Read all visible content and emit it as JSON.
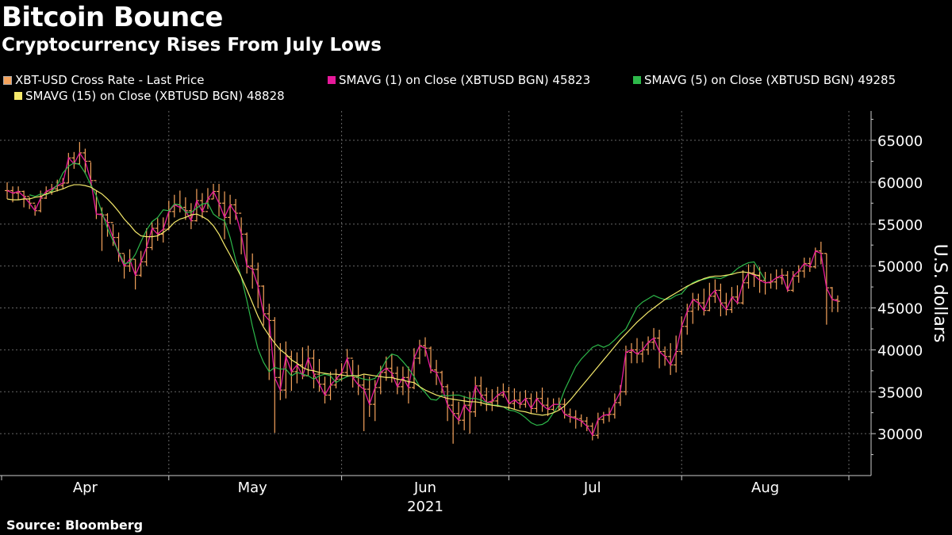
{
  "chart_data": {
    "type": "line",
    "title": "Bitcoin Bounce",
    "subtitle": "Cryptocurrency Rises From July Lows",
    "source": "Source: Bloomberg",
    "ylabel": "U.S. dollars",
    "year_label": "2021",
    "ylim": [
      25000,
      68500
    ],
    "yticks": [
      30000,
      35000,
      40000,
      45000,
      50000,
      55000,
      60000,
      65000
    ],
    "ytick_labels": [
      "30000",
      "35000",
      "40000",
      "45000",
      "50000",
      "55000",
      "60000",
      "65000"
    ],
    "xlim": [
      0,
      152
    ],
    "month_labels": [
      {
        "label": "Apr",
        "x": 15
      },
      {
        "label": "May",
        "x": 45
      },
      {
        "label": "Jun",
        "x": 76
      },
      {
        "label": "Jul",
        "x": 106
      },
      {
        "label": "Aug",
        "x": 137
      }
    ],
    "legend": [
      {
        "label": "XBT-USD Cross Rate - Last Price",
        "color": "#f5a35c"
      },
      {
        "label": "SMAVG (1)  on Close (XBTUSD BGN) 45823",
        "color": "#e6199a"
      },
      {
        "label": "SMAVG (5)  on Close (XBTUSD BGN) 49285",
        "color": "#2db84a"
      },
      {
        "label": "SMAVG (15)  on Close (XBTUSD BGN) 48828",
        "color": "#f5e96b"
      }
    ],
    "series": [
      {
        "name": "XBT-USD Cross Rate - Last Price",
        "type": "ohlc",
        "color": "#f5a35c",
        "start_x": 1,
        "close": [
          59000,
          58700,
          58900,
          58300,
          57500,
          56600,
          58100,
          58900,
          59200,
          59600,
          59900,
          62900,
          62200,
          63500,
          62500,
          60200,
          56200,
          56100,
          55200,
          53400,
          51500,
          50000,
          50800,
          48900,
          50500,
          52200,
          54500,
          53800,
          54400,
          56500,
          57300,
          57000,
          56600,
          55400,
          57800,
          56500,
          58000,
          58900,
          57500,
          55800,
          57300,
          56300,
          53800,
          50000,
          49600,
          47600,
          44300,
          43500,
          36700,
          35200,
          39200,
          37400,
          38200,
          36900,
          39000,
          37100,
          35900,
          34600,
          35800,
          36500,
          37300,
          39000,
          36700,
          35800,
          35300,
          33500,
          35500,
          37300,
          37800,
          37200,
          35600,
          36700,
          35500,
          39000,
          40500,
          40200,
          37600,
          37300,
          35600,
          33400,
          32400,
          31600,
          33400,
          32600,
          35700,
          34600,
          33700,
          33900,
          34600,
          35000,
          33600,
          34000,
          33500,
          34200,
          33000,
          34200,
          33400,
          32900,
          33500,
          33500,
          32300,
          32000,
          31800,
          31500,
          30900,
          29800,
          31700,
          32200,
          32300,
          33700,
          35000,
          39700,
          40000,
          39500,
          40000,
          40900,
          41400,
          39800,
          39200,
          38200,
          39800,
          42800,
          44600,
          46000,
          45600,
          44700,
          46400,
          47100,
          45600,
          44800,
          46300,
          45600,
          48000,
          49200,
          48900,
          48300,
          48000,
          48100,
          48600,
          48900,
          47100,
          48800,
          49400,
          50300,
          49900,
          51800,
          51500,
          47400,
          46000,
          45800
        ],
        "high": [
          60000,
          59500,
          59500,
          59000,
          58200,
          57300,
          59000,
          59500,
          59800,
          60300,
          60500,
          63500,
          63600,
          64800,
          64000,
          62400,
          59000,
          57000,
          56300,
          55000,
          54000,
          51400,
          52000,
          50800,
          51800,
          54500,
          55200,
          55700,
          55800,
          57800,
          58500,
          59000,
          58200,
          57500,
          59200,
          58700,
          59300,
          59800,
          59800,
          58900,
          58500,
          58000,
          55800,
          54000,
          51500,
          50400,
          47700,
          45500,
          43900,
          40800,
          41000,
          39900,
          39700,
          40300,
          40500,
          40000,
          38900,
          36800,
          37400,
          37700,
          38400,
          40100,
          38800,
          38200,
          37000,
          36800,
          36400,
          38100,
          39200,
          39500,
          38000,
          38000,
          38000,
          40200,
          41200,
          41500,
          40400,
          38800,
          37500,
          35900,
          35000,
          33800,
          34500,
          35000,
          36800,
          36800,
          35500,
          35300,
          35600,
          36000,
          35600,
          35400,
          35000,
          35200,
          34800,
          35000,
          35500,
          34300,
          34200,
          34300,
          34200,
          33000,
          32800,
          32300,
          32000,
          31300,
          32500,
          32600,
          33100,
          34800,
          35800,
          40500,
          40800,
          41400,
          41000,
          41600,
          42600,
          42400,
          40400,
          40800,
          41700,
          44000,
          45500,
          46800,
          46700,
          47300,
          48000,
          48400,
          47900,
          46800,
          47500,
          47700,
          49500,
          50200,
          50200,
          49900,
          49300,
          49100,
          49600,
          49700,
          49400,
          49400,
          50100,
          51000,
          51000,
          52200,
          52900,
          51500,
          47500,
          46500
        ],
        "low": [
          58000,
          57600,
          57900,
          57000,
          56800,
          56000,
          56400,
          58000,
          58500,
          58900,
          59200,
          59900,
          61600,
          62100,
          61000,
          59500,
          55600,
          51800,
          53500,
          52400,
          50500,
          48500,
          49300,
          47200,
          48700,
          50000,
          51900,
          53000,
          52800,
          54300,
          55800,
          56400,
          55500,
          54400,
          55300,
          55700,
          56800,
          58000,
          55900,
          53200,
          55000,
          55500,
          51400,
          49100,
          47300,
          45000,
          42900,
          36400,
          30100,
          34000,
          34200,
          35100,
          36000,
          36500,
          36900,
          35400,
          35000,
          33600,
          34000,
          35400,
          36300,
          36800,
          35500,
          34600,
          30300,
          32000,
          31500,
          34700,
          36300,
          36100,
          34700,
          34600,
          33600,
          35300,
          38300,
          39200,
          37200,
          35800,
          34800,
          31500,
          28800,
          31100,
          30400,
          30000,
          32000,
          33300,
          32700,
          32700,
          33200,
          34300,
          32900,
          32900,
          33000,
          33100,
          32400,
          32500,
          32600,
          32100,
          32700,
          32800,
          31800,
          31300,
          30600,
          30800,
          30300,
          29200,
          29400,
          31200,
          31400,
          31800,
          33300,
          34600,
          38400,
          38400,
          38500,
          39400,
          40000,
          37800,
          38100,
          37000,
          37300,
          39400,
          41800,
          43100,
          44700,
          44100,
          44600,
          45600,
          44000,
          44100,
          44400,
          45400,
          45400,
          47300,
          47500,
          46800,
          46600,
          47300,
          47200,
          47800,
          46900,
          46900,
          48000,
          48600,
          49300,
          49700,
          50200,
          43000,
          44500,
          44500
        ]
      },
      {
        "name": "SMAVG (5)",
        "type": "line",
        "color": "#2db84a",
        "start_x": 5,
        "values": [
          58500,
          58300,
          58600,
          58500,
          58900,
          59700,
          61100,
          61900,
          62300,
          62100,
          61100,
          59700,
          58400,
          56400,
          54500,
          53000,
          51700,
          50300,
          50400,
          51400,
          52900,
          54300,
          55300,
          55800,
          56700,
          56600,
          57400,
          57300,
          56400,
          56400,
          56900,
          57400,
          57500,
          56200,
          55700,
          55400,
          53400,
          50700,
          48700,
          45900,
          42800,
          40100,
          38500,
          37400,
          37900,
          37700,
          37700,
          36900,
          37300,
          37100,
          36900,
          36500,
          36900,
          37100,
          36900,
          36100,
          36500,
          36800,
          37000,
          36700,
          36500,
          36400,
          36600,
          37500,
          38800,
          39500,
          39300,
          38600,
          37800,
          36800,
          35600,
          34900,
          34100,
          34000,
          34600,
          34500,
          34600,
          34600,
          34400,
          34200,
          34200,
          34000,
          33700,
          33400,
          33400,
          33200,
          32800,
          32700,
          32400,
          31900,
          31300,
          31000,
          31100,
          31500,
          32500,
          33400,
          35200,
          36600,
          38000,
          38900,
          39600,
          40300,
          40600,
          40300,
          40600,
          41200,
          41900,
          42500,
          43800,
          45100,
          45700,
          46100,
          46500,
          46200,
          46000,
          46100,
          46500,
          46700,
          47500,
          48000,
          48300,
          48400,
          48600,
          48600,
          48500,
          48800,
          49100,
          49700,
          50100,
          50400,
          50500,
          49400,
          48300
        ],
        "end_x": 137
      },
      {
        "name": "SMAVG (15)",
        "type": "line",
        "color": "#f5e96b",
        "start_x": 1,
        "values": [
          58000,
          57900,
          57900,
          58000,
          58000,
          58200,
          58300,
          58600,
          58800,
          59000,
          59200,
          59500,
          59700,
          59700,
          59600,
          59400,
          59000,
          58600,
          58000,
          57300,
          56500,
          55600,
          54900,
          54100,
          53600,
          53500,
          53500,
          53600,
          54000,
          54500,
          55200,
          55600,
          55800,
          56100,
          56200,
          55900,
          55500,
          54800,
          53800,
          52500,
          51300,
          50000,
          48700,
          47200,
          45600,
          44000,
          42700,
          41700,
          40800,
          40000,
          39500,
          38800,
          38400,
          37900,
          37600,
          37500,
          37300,
          37200,
          37100,
          37100,
          37000,
          36900,
          36900,
          36900,
          37100,
          37000,
          36900,
          36800,
          36700,
          36700,
          36500,
          36400,
          36200,
          36100,
          35600,
          35200,
          34900,
          34600,
          34400,
          34200,
          34100,
          34000,
          33900,
          33800,
          33800,
          33700,
          33500,
          33400,
          33300,
          33200,
          33100,
          32900,
          32700,
          32600,
          32400,
          32300,
          32200,
          32300,
          32500,
          32800,
          33300,
          34000,
          34800,
          35600,
          36400,
          37200,
          38000,
          38800,
          39600,
          40400,
          41200,
          41900,
          42600,
          43300,
          43900,
          44500,
          45000,
          45500,
          46000,
          46400,
          46800,
          47200,
          47600,
          47900,
          48200,
          48500,
          48700,
          48800,
          48800,
          48900,
          49000,
          49200,
          49300,
          49200,
          49000,
          48800
        ]
      }
    ]
  }
}
